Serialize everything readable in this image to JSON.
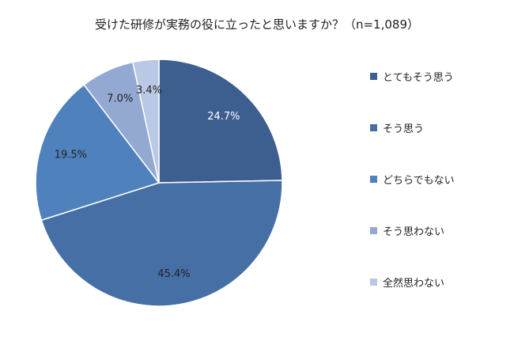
{
  "chart_data": {
    "type": "pie",
    "title": "受けた研修が実務の役に立ったと思いますか？（n=1,089）",
    "categories": [
      "とてもそう思う",
      "そう思う",
      "どちらでもない",
      "そう思わない",
      "全然思わない"
    ],
    "values": [
      24.7,
      45.4,
      19.5,
      7.0,
      3.4
    ],
    "value_labels": [
      "24.7%",
      "45.4%",
      "19.5%",
      "7.0%",
      "3.4%"
    ],
    "colors": [
      "#3d5f8f",
      "#4670a5",
      "#4f81bd",
      "#93a9d2",
      "#b9c8e4"
    ],
    "label_colors": [
      "#ffffff",
      "#222222",
      "#222222",
      "#222222",
      "#222222"
    ],
    "start": "12 o'clock",
    "direction": "clockwise",
    "legend_position": "right"
  }
}
